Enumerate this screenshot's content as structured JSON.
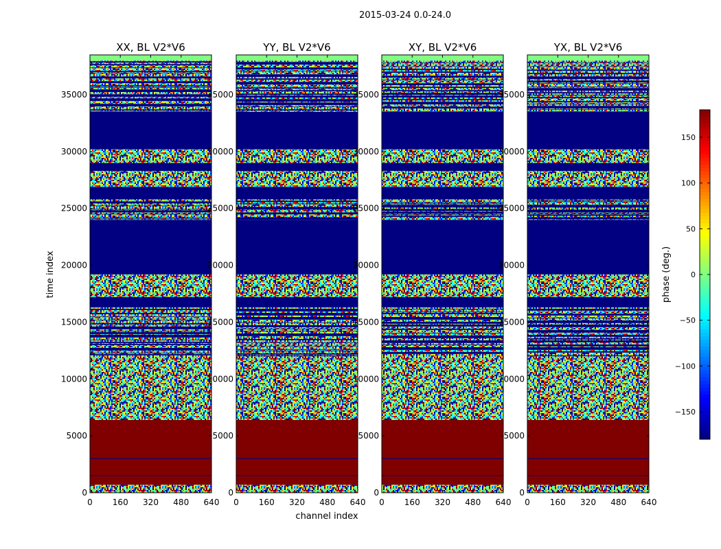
{
  "chart_data": {
    "type": "heatmap",
    "title": "2015-03-24 0.0-24.0",
    "xlabel": "channel index",
    "ylabel": "time index",
    "xlim": [
      0,
      640
    ],
    "ylim": [
      0,
      38500
    ],
    "xticks": [
      0,
      160,
      320,
      480,
      640
    ],
    "yticks": [
      0,
      5000,
      10000,
      15000,
      20000,
      25000,
      30000,
      35000
    ],
    "colormap": "jet",
    "colorbar": {
      "label": "phase (deg.)",
      "range": [
        -180,
        180
      ],
      "ticks": [
        -150,
        -100,
        -50,
        0,
        50,
        100,
        150
      ],
      "tick_labels": [
        "−150",
        "−100",
        "−50",
        "0",
        "50",
        "100",
        "150"
      ]
    },
    "panels": [
      {
        "title": "XX, BL V2*V6"
      },
      {
        "title": "YY, BL V2*V6"
      },
      {
        "title": "XY, BL V2*V6"
      },
      {
        "title": "YX, BL V2*V6"
      }
    ],
    "bands": [
      {
        "y0": 0,
        "y1": 700,
        "kind": "noise"
      },
      {
        "y0": 700,
        "y1": 6400,
        "kind": "const",
        "value": 180
      },
      {
        "y0": 6400,
        "y1": 12000,
        "kind": "noise"
      },
      {
        "y0": 12000,
        "y1": 16300,
        "kind": "stripes"
      },
      {
        "y0": 16300,
        "y1": 17200,
        "kind": "const",
        "value": -180
      },
      {
        "y0": 17200,
        "y1": 19200,
        "kind": "noise"
      },
      {
        "y0": 19200,
        "y1": 24000,
        "kind": "const",
        "value": -180
      },
      {
        "y0": 24000,
        "y1": 25800,
        "kind": "stripes"
      },
      {
        "y0": 25800,
        "y1": 26900,
        "kind": "const",
        "value": -180
      },
      {
        "y0": 26900,
        "y1": 28300,
        "kind": "noise"
      },
      {
        "y0": 28300,
        "y1": 29000,
        "kind": "const",
        "value": -180
      },
      {
        "y0": 29000,
        "y1": 30200,
        "kind": "noise"
      },
      {
        "y0": 30200,
        "y1": 33500,
        "kind": "const",
        "value": -180
      },
      {
        "y0": 33500,
        "y1": 38000,
        "kind": "stripes"
      },
      {
        "y0": 38000,
        "y1": 38500,
        "kind": "const",
        "value": 0
      }
    ]
  },
  "colors": {
    "noise_palette": [
      "#00007f",
      "#0000ff",
      "#007fff",
      "#00ffff",
      "#7fff7f",
      "#ffff00",
      "#ff7f00",
      "#ff0000",
      "#7f0000",
      "#40ff9f",
      "#9fff60"
    ],
    "const_high": "#800000",
    "const_low": "#00007f",
    "line": "#00007f"
  }
}
